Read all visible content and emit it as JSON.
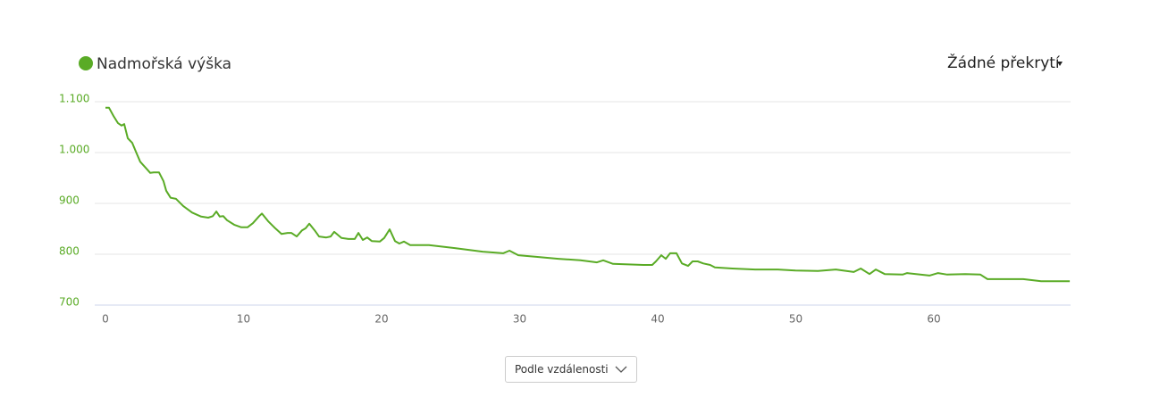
{
  "chart_data": {
    "type": "line",
    "series": [
      {
        "name": "Nadmořská výška",
        "color": "#5aab26",
        "x": [
          0,
          0.26,
          0.58,
          0.9,
          1.17,
          1.36,
          1.62,
          1.94,
          2.2,
          2.52,
          2.91,
          3.24,
          3.5,
          3.88,
          4.2,
          4.4,
          4.72,
          5.11,
          5.63,
          6.28,
          6.93,
          7.44,
          7.77,
          8.03,
          8.28,
          8.54,
          8.8,
          9.32,
          9.84,
          10.29,
          10.68,
          11.13,
          11.33,
          11.78,
          12.3,
          12.75,
          13.2,
          13.46,
          13.85,
          14.24,
          14.5,
          14.76,
          15.15,
          15.47,
          15.99,
          16.31,
          16.57,
          17.09,
          17.6,
          18.06,
          18.32,
          18.64,
          18.96,
          19.29,
          19.87,
          20.19,
          20.58,
          20.97,
          21.29,
          21.62,
          22.07,
          23.43,
          25.37,
          27.31,
          28.8,
          29.26,
          29.9,
          31.2,
          32.8,
          34.4,
          35.6,
          36.05,
          36.76,
          38.96,
          39.6,
          39.87,
          40.26,
          40.58,
          40.9,
          41.36,
          41.75,
          42.2,
          42.52,
          42.9,
          43.3,
          43.8,
          44.14,
          45.4,
          47.05,
          48.7,
          49.97,
          51.6,
          52.9,
          54.2,
          54.7,
          55.34,
          55.8,
          56.44,
          57.73,
          58.06,
          59.68,
          60.3,
          60.97,
          62.27,
          63.37,
          63.88,
          66.47,
          67.77,
          69.84
        ],
        "values": [
          1088,
          1088,
          1072,
          1058,
          1053,
          1056,
          1028,
          1019,
          1002,
          982,
          970,
          960,
          961,
          961,
          944,
          925,
          911,
          909,
          895,
          882,
          874,
          872,
          875,
          884,
          874,
          875,
          867,
          858,
          853,
          853,
          861,
          875,
          880,
          865,
          851,
          840,
          842,
          842,
          835,
          847,
          851,
          860,
          847,
          835,
          833,
          835,
          844,
          832,
          830,
          830,
          842,
          828,
          833,
          826,
          825,
          832,
          849,
          826,
          821,
          825,
          818,
          818,
          812,
          805,
          802,
          807,
          798,
          795,
          791,
          788,
          784,
          788,
          781,
          779,
          779,
          786,
          798,
          791,
          802,
          802,
          782,
          777,
          786,
          786,
          782,
          779,
          774,
          772,
          770,
          770,
          768,
          767,
          770,
          765,
          772,
          761,
          770,
          761,
          760,
          763,
          758,
          763,
          760,
          761,
          760,
          751,
          751,
          747,
          747
        ]
      }
    ],
    "xlim": [
      0,
      69.9
    ],
    "xticks": [
      0,
      10,
      20,
      30,
      40,
      50,
      60
    ],
    "ylim": [
      700,
      1100
    ],
    "yticks": [
      {
        "value": 700,
        "label": "700"
      },
      {
        "value": 800,
        "label": "800"
      },
      {
        "value": 900,
        "label": "900"
      },
      {
        "value": 1000,
        "label": "1.000"
      },
      {
        "value": 1100,
        "label": "1.100"
      }
    ],
    "grid": true
  },
  "overlay_menu": "Žádné překrytí",
  "mode_select": "Podle vzdálenosti"
}
